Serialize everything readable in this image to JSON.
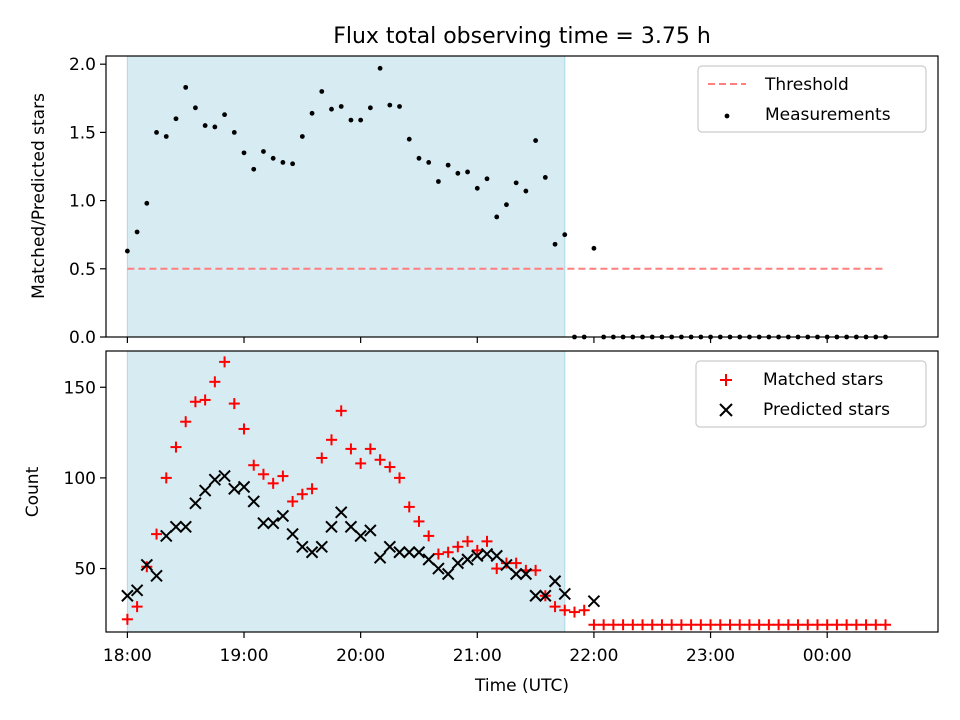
{
  "title": "Flux total observing time = 3.75 h",
  "xlabel": "Time (UTC)",
  "x_ticks": [
    {
      "t": 0,
      "label": "18:00"
    },
    {
      "t": 60,
      "label": "19:00"
    },
    {
      "t": 120,
      "label": "20:00"
    },
    {
      "t": 180,
      "label": "21:00"
    },
    {
      "t": 240,
      "label": "22:00"
    },
    {
      "t": 300,
      "label": "23:00"
    },
    {
      "t": 360,
      "label": "00:00"
    }
  ],
  "xlim": [
    "17:49",
    "00:57"
  ],
  "colors": {
    "shade": "#add8e6",
    "threshold": "#ff7f7f",
    "matched": "#ff0000",
    "predicted": "#000000",
    "measure": "#000000"
  },
  "chart_data": [
    {
      "type": "scatter",
      "ylabel": "Matched/Predicted stars",
      "ylim": [
        0,
        2.06
      ],
      "yticks": [
        "0.0",
        "0.5",
        "1.0",
        "1.5",
        "2.0"
      ],
      "legend_position": "top-right",
      "observing_window": [
        "18:00",
        "21:45"
      ],
      "threshold": {
        "name": "Threshold",
        "value": 0.5,
        "x": [
          "18:00",
          "00:30"
        ]
      },
      "measurements": {
        "name": "Measurements",
        "x": [
          "18:00",
          "18:05",
          "18:10",
          "18:15",
          "18:20",
          "18:25",
          "18:30",
          "18:35",
          "18:40",
          "18:45",
          "18:50",
          "18:55",
          "19:00",
          "19:05",
          "19:10",
          "19:15",
          "19:20",
          "19:25",
          "19:30",
          "19:35",
          "19:40",
          "19:45",
          "19:50",
          "19:55",
          "20:00",
          "20:05",
          "20:10",
          "20:15",
          "20:20",
          "20:25",
          "20:30",
          "20:35",
          "20:40",
          "20:45",
          "20:50",
          "20:55",
          "21:00",
          "21:05",
          "21:10",
          "21:15",
          "21:20",
          "21:25",
          "21:30",
          "21:35",
          "21:40",
          "21:45",
          "21:50",
          "21:55",
          "22:00",
          "22:05",
          "22:10",
          "22:15",
          "22:20",
          "22:25",
          "22:30",
          "22:35",
          "22:40",
          "22:45",
          "22:50",
          "22:55",
          "23:00",
          "23:05",
          "23:10",
          "23:15",
          "23:20",
          "23:25",
          "23:30",
          "23:35",
          "23:40",
          "23:45",
          "23:50",
          "23:55",
          "00:00",
          "00:05",
          "00:10",
          "00:15",
          "00:20",
          "00:25",
          "00:30"
        ],
        "y": [
          0.63,
          0.77,
          0.98,
          1.5,
          1.47,
          1.6,
          1.83,
          1.68,
          1.55,
          1.54,
          1.63,
          1.5,
          1.35,
          1.23,
          1.36,
          1.31,
          1.28,
          1.27,
          1.47,
          1.64,
          1.8,
          1.67,
          1.69,
          1.59,
          1.59,
          1.68,
          1.97,
          1.7,
          1.69,
          1.45,
          1.31,
          1.28,
          1.14,
          1.26,
          1.2,
          1.21,
          1.09,
          1.16,
          0.88,
          0.97,
          1.13,
          1.07,
          1.44,
          1.17,
          0.68,
          0.75,
          0,
          0,
          0.65,
          0,
          0,
          0,
          0,
          0,
          0,
          0,
          0,
          0,
          0,
          0,
          0,
          0,
          0,
          0,
          0,
          0,
          0,
          0,
          0,
          0,
          0,
          0,
          0,
          0,
          0,
          0,
          0,
          0,
          0
        ]
      }
    },
    {
      "type": "scatter",
      "ylabel": "Count",
      "ylim": [
        15,
        170
      ],
      "yticks": [
        "50",
        "100",
        "150"
      ],
      "legend_position": "top-right",
      "observing_window": [
        "18:00",
        "21:45"
      ],
      "x": [
        "18:00",
        "18:05",
        "18:10",
        "18:15",
        "18:20",
        "18:25",
        "18:30",
        "18:35",
        "18:40",
        "18:45",
        "18:50",
        "18:55",
        "19:00",
        "19:05",
        "19:10",
        "19:15",
        "19:20",
        "19:25",
        "19:30",
        "19:35",
        "19:40",
        "19:45",
        "19:50",
        "19:55",
        "20:00",
        "20:05",
        "20:10",
        "20:15",
        "20:20",
        "20:25",
        "20:30",
        "20:35",
        "20:40",
        "20:45",
        "20:50",
        "20:55",
        "21:00",
        "21:05",
        "21:10",
        "21:15",
        "21:20",
        "21:25",
        "21:30",
        "21:35",
        "21:40",
        "21:45",
        "21:50",
        "21:55",
        "22:00",
        "22:05",
        "22:10",
        "22:15",
        "22:20",
        "22:25",
        "22:30",
        "22:35",
        "22:40",
        "22:45",
        "22:50",
        "22:55",
        "23:00",
        "23:05",
        "23:10",
        "23:15",
        "23:20",
        "23:25",
        "23:30",
        "23:35",
        "23:40",
        "23:45",
        "23:50",
        "23:55",
        "00:00",
        "00:05",
        "00:10",
        "00:15",
        "00:20",
        "00:25",
        "00:30"
      ],
      "series": [
        {
          "name": "Matched stars",
          "marker": "+",
          "values": [
            22,
            29,
            51,
            69,
            100,
            117,
            131,
            142,
            143,
            153,
            164,
            141,
            127,
            107,
            102,
            97,
            101,
            87,
            91,
            94,
            111,
            121,
            137,
            116,
            108,
            116,
            110,
            106,
            100,
            84,
            76,
            68,
            58,
            59,
            62,
            65,
            60,
            65,
            50,
            53,
            53,
            49,
            49,
            35,
            29,
            27,
            26,
            27,
            19,
            19,
            19,
            19,
            19,
            19,
            19,
            19,
            19,
            19,
            19,
            19,
            19,
            19,
            19,
            19,
            19,
            19,
            19,
            19,
            19,
            19,
            19,
            19,
            19,
            19,
            19,
            19,
            19,
            19,
            19
          ]
        },
        {
          "name": "Predicted stars",
          "marker": "x",
          "values": [
            35,
            38,
            52,
            46,
            68,
            73,
            73,
            86,
            93,
            99,
            101,
            94,
            95,
            87,
            75,
            75,
            79,
            69,
            62,
            59,
            62,
            73,
            81,
            73,
            68,
            71,
            56,
            62,
            59,
            59,
            59,
            55,
            50,
            47,
            53,
            55,
            57,
            58,
            57,
            52,
            47,
            47,
            35,
            35,
            43,
            36,
            null,
            null,
            32,
            null,
            null,
            null,
            null,
            null,
            null,
            null,
            null,
            null,
            null,
            null,
            null,
            null,
            null,
            null,
            null,
            null,
            null,
            null,
            null,
            null,
            null,
            null,
            null,
            null,
            null,
            null,
            null,
            null,
            null
          ]
        }
      ]
    }
  ]
}
